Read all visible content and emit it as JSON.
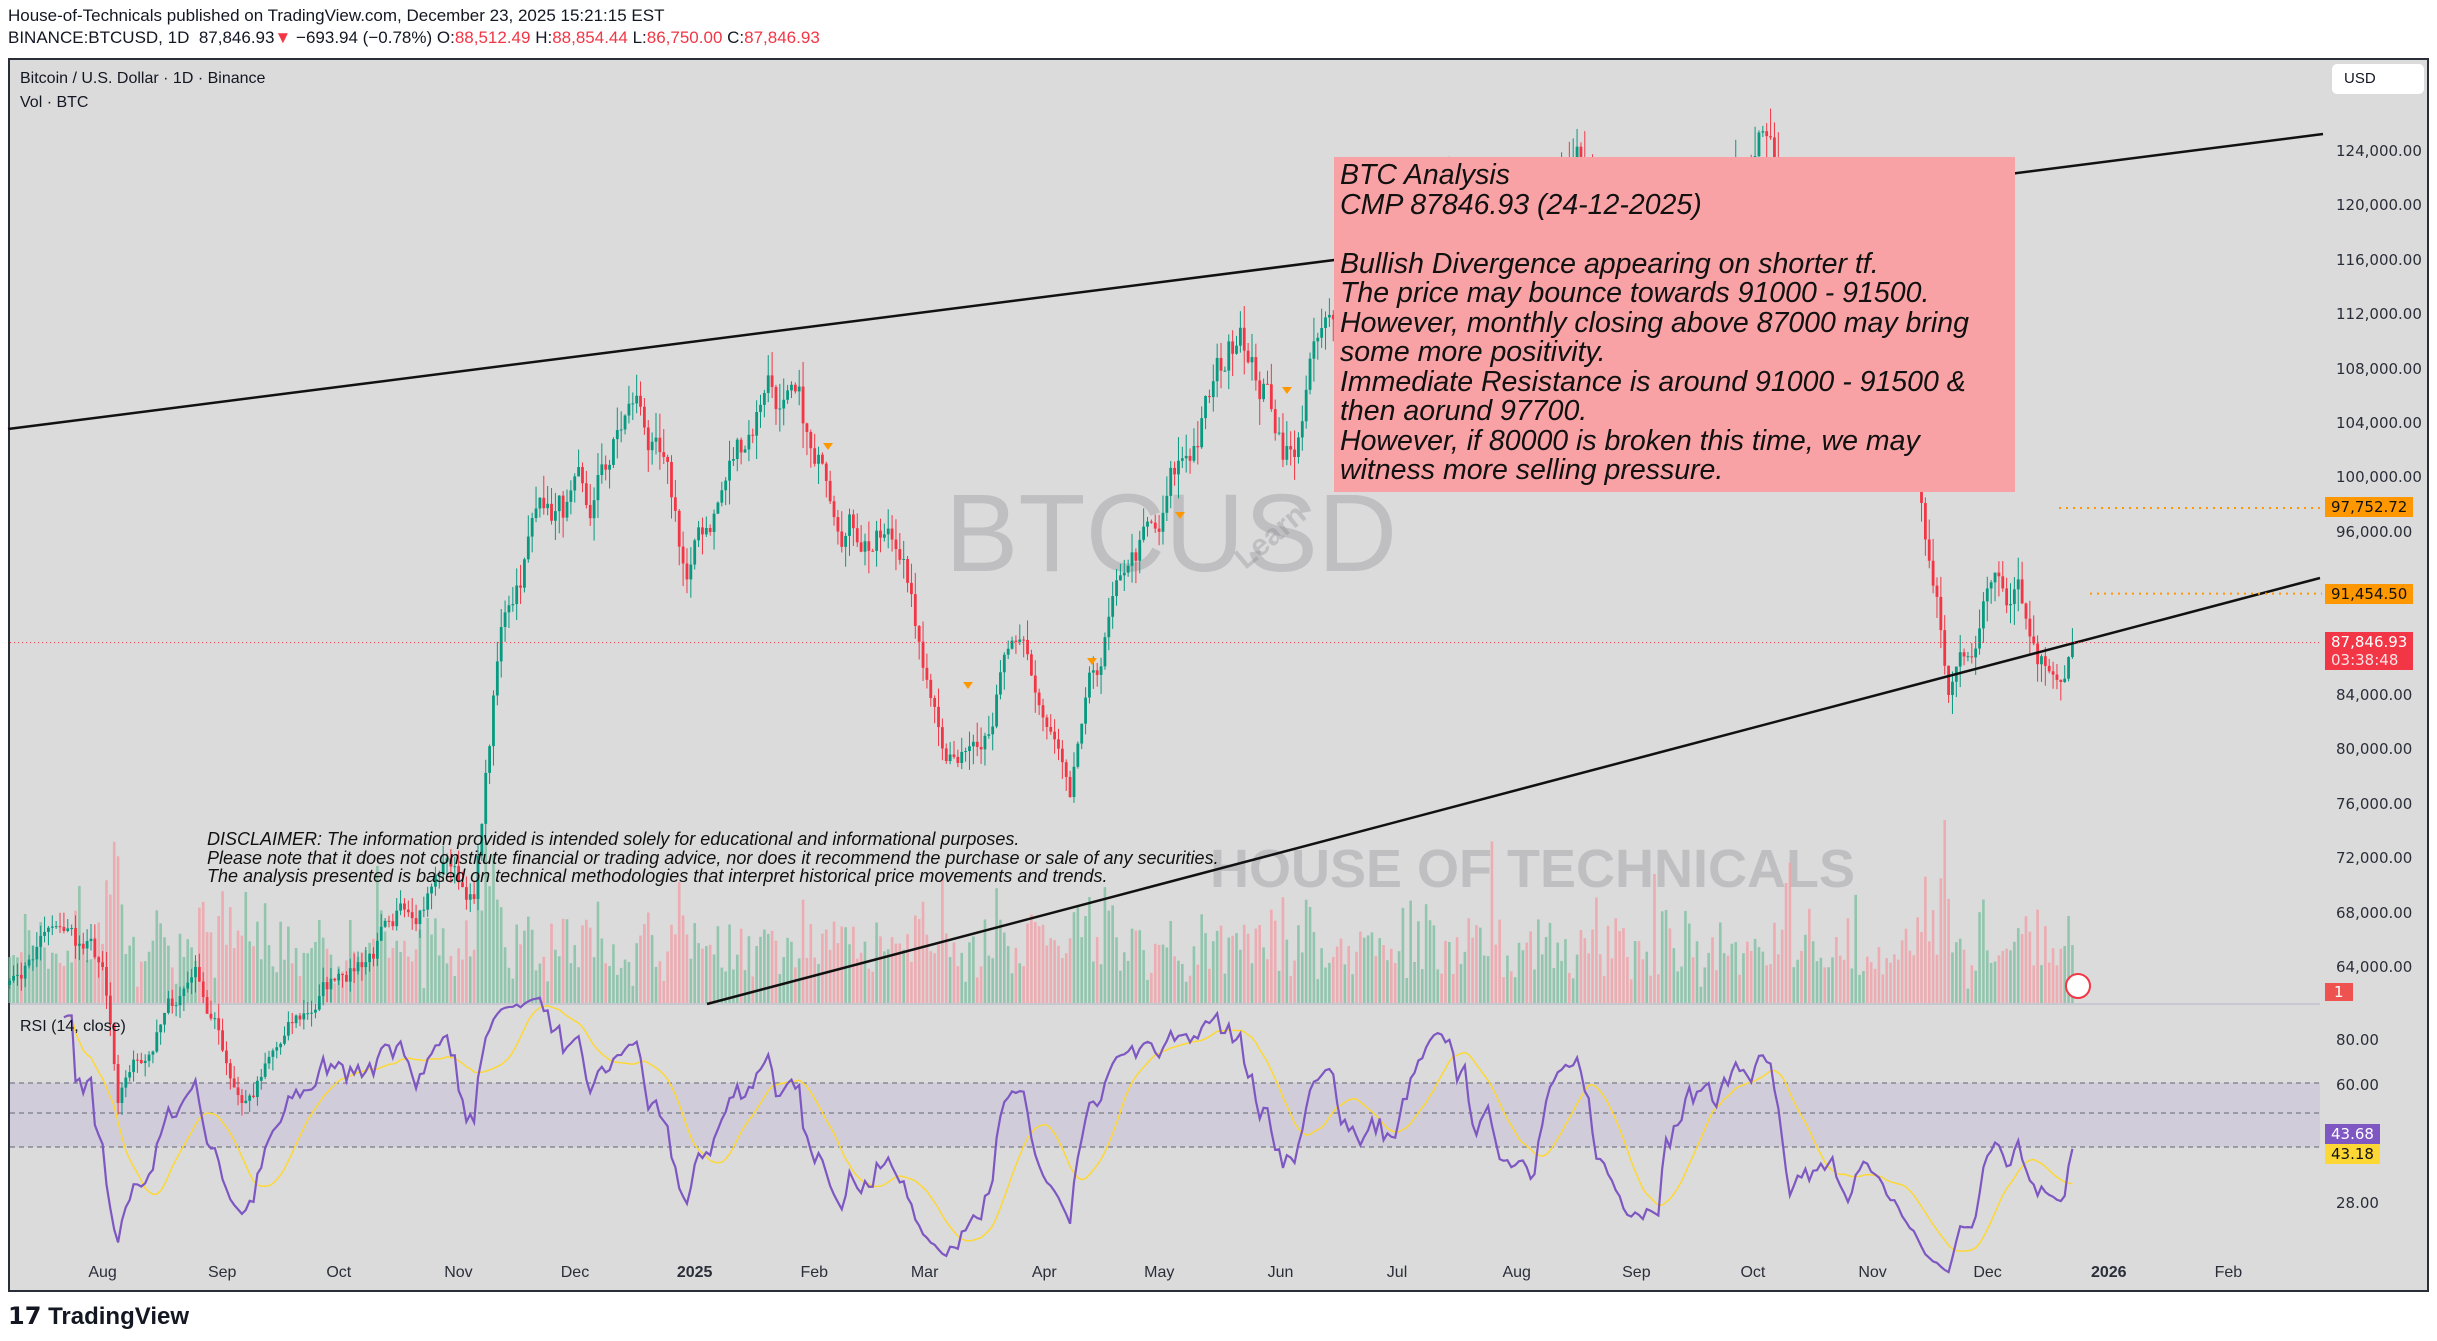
{
  "header": {
    "publisher": "House-of-Technicals",
    "published_text": "published on TradingView.com",
    "date": ", December 23, 2025 15:21:15 EST",
    "symbol": "BINANCE:BTCUSD, 1D",
    "last": "87,846.93",
    "change": "−693.94 (−0.78%)",
    "o_label": "O:",
    "o": "88,512.49",
    "h_label": "H:",
    "h": "88,854.44",
    "l_label": "L:",
    "l": "86,750.00",
    "c_label": "C:",
    "c": "87,846.93"
  },
  "legend": {
    "title": "Bitcoin / U.S. Dollar · 1D · Binance",
    "volume": "Vol · BTC",
    "rsi": "RSI (14, close)"
  },
  "currency_button": "USD",
  "watermark": {
    "symbol": "BTCUSD",
    "brand": "HOUSE OF TECHNICALS",
    "brand_small": "Learn"
  },
  "price_axis": [
    "124,000.00",
    "120,000.00",
    "116,000.00",
    "112,000.00",
    "108,000.00",
    "104,000.00",
    "100,000.00",
    "96,000.00",
    "84,000.00",
    "80,000.00",
    "76,000.00",
    "72,000.00",
    "68,000.00",
    "64,000.00"
  ],
  "price_ticks": [
    124000,
    120000,
    116000,
    112000,
    108000,
    104000,
    100000,
    96000,
    84000,
    80000,
    76000,
    72000,
    68000,
    64000
  ],
  "tags": {
    "level1": "97,752.72",
    "level2": "91,454.50",
    "current": "87,846.93",
    "countdown": "03:38:48",
    "events": "1",
    "rsi": "43.68",
    "rsi_ma": "43.18"
  },
  "rsi_axis": [
    "80.00",
    "60.00",
    "28.00"
  ],
  "time_axis": [
    "Aug",
    "Sep",
    "Oct",
    "Nov",
    "Dec",
    "2025",
    "Feb",
    "Mar",
    "Apr",
    "May",
    "Jun",
    "Jul",
    "Aug",
    "Sep",
    "Oct",
    "Nov",
    "Dec",
    "2026",
    "Feb"
  ],
  "annotation": {
    "lines": [
      "BTC Analysis",
      "CMP 87846.93 (24-12-2025)",
      "",
      "Bullish Divergence appearing on shorter tf.",
      "The price may bounce towards 91000 - 91500.",
      "However, monthly closing above 87000 may bring",
      "some more positivity.",
      "Immediate Resistance is around 91000 - 91500 &",
      "then aorund 97700.",
      "However, if 80000 is broken this time, we may",
      "witness more selling pressure."
    ]
  },
  "disclaimer": [
    "DISCLAIMER: The information provided is intended solely for educational and informational purposes.",
    "Please note that it does not constitute financial or trading advice, nor does it recommend the purchase or sale of any securities.",
    "The analysis presented is based on technical methodologies that interpret historical price movements and trends."
  ],
  "footer": {
    "brand": "TradingView"
  },
  "colors": {
    "up": "#089981",
    "down": "#f23645",
    "rsi": "#7e57c2",
    "rsi_ma": "#fdd835",
    "level": "#ff9800",
    "note_bg": "#f9a2a5"
  },
  "chart_data": {
    "type": "candlestick",
    "symbol": "BTCUSD",
    "interval": "1D",
    "y_range": [
      61000,
      128000
    ],
    "price_keyframes": [
      [
        "2024-07-08",
        63000
      ],
      [
        "2024-07-20",
        67000
      ],
      [
        "2024-08-01",
        64000
      ],
      [
        "2024-08-05",
        54000
      ],
      [
        "2024-08-25",
        64000
      ],
      [
        "2024-09-06",
        54000
      ],
      [
        "2024-10-01",
        63500
      ],
      [
        "2024-10-15",
        67000
      ],
      [
        "2024-10-29",
        72000
      ],
      [
        "2024-11-05",
        69000
      ],
      [
        "2024-11-12",
        89000
      ],
      [
        "2024-11-22",
        98500
      ],
      [
        "2024-12-05",
        97000
      ],
      [
        "2024-12-17",
        106000
      ],
      [
        "2024-12-30",
        92500
      ],
      [
        "2025-01-20",
        107500
      ],
      [
        "2025-02-01",
        101000
      ],
      [
        "2025-02-24",
        94000
      ],
      [
        "2025-03-01",
        86000
      ],
      [
        "2025-03-10",
        79000
      ],
      [
        "2025-03-24",
        88000
      ],
      [
        "2025-04-08",
        76500
      ],
      [
        "2025-04-22",
        93000
      ],
      [
        "2025-05-01",
        96000
      ],
      [
        "2025-05-22",
        111000
      ],
      [
        "2025-06-05",
        101500
      ],
      [
        "2025-06-10",
        110000
      ],
      [
        "2025-07-01",
        107000
      ],
      [
        "2025-07-14",
        121000
      ],
      [
        "2025-08-02",
        113000
      ],
      [
        "2025-08-14",
        123000
      ],
      [
        "2025-09-01",
        108000
      ],
      [
        "2025-09-18",
        117000
      ],
      [
        "2025-10-06",
        125000
      ],
      [
        "2025-10-11",
        112000
      ],
      [
        "2025-11-01",
        110000
      ],
      [
        "2025-11-12",
        102000
      ],
      [
        "2025-11-21",
        84000
      ],
      [
        "2025-12-03",
        93000
      ],
      [
        "2025-12-09",
        92500
      ],
      [
        "2025-12-18",
        85500
      ],
      [
        "2025-12-23",
        87846.93
      ]
    ],
    "levels": [
      97752.72,
      91454.5
    ],
    "last_price": 87846.93,
    "rsi": {
      "period": 14,
      "source": "close",
      "last": 43.68,
      "ma_last": 43.18,
      "axis_ticks": [
        80,
        60,
        28
      ]
    },
    "x_ticks": [
      "Aug",
      "Sep",
      "Oct",
      "Nov",
      "Dec",
      "2025",
      "Feb",
      "Mar",
      "Apr",
      "May",
      "Jun",
      "Jul",
      "Aug",
      "Sep",
      "Oct",
      "Nov",
      "Dec",
      "2026",
      "Feb"
    ]
  }
}
